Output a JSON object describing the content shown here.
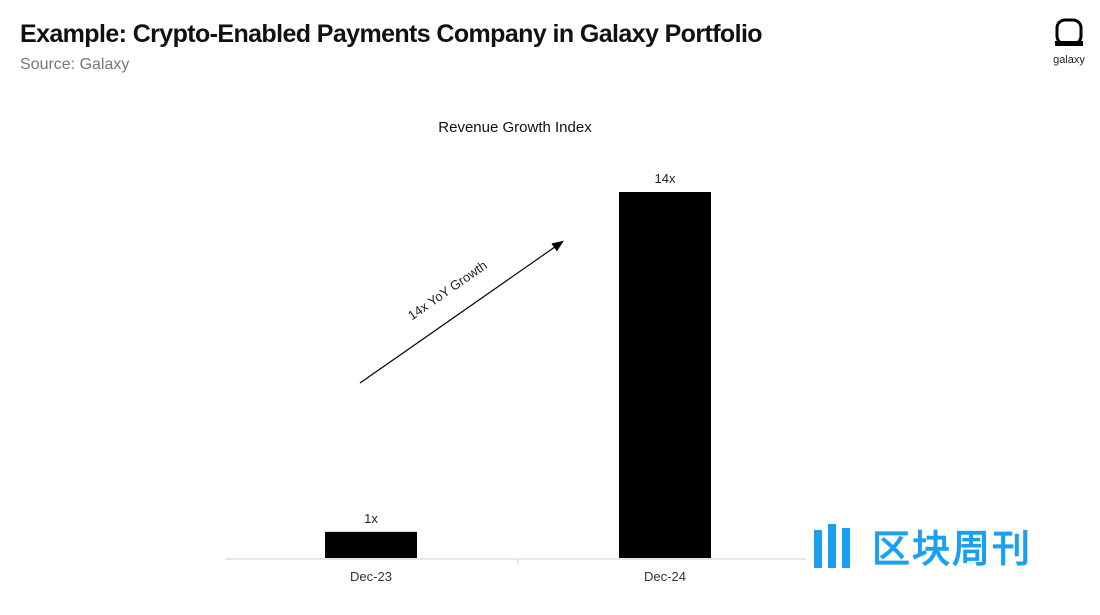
{
  "header": {
    "title": "Example: Crypto-Enabled Payments Company in Galaxy Portfolio",
    "subtitle": "Source: Galaxy"
  },
  "logo": {
    "text": "galaxy",
    "icon": "galaxy-logo-icon"
  },
  "watermark": {
    "text": "区块周刊",
    "icon": "blockchain-weekly-logo-icon",
    "color": "#1aa0f0"
  },
  "chart_data": {
    "type": "bar",
    "title": "Revenue Growth Index",
    "categories": [
      "Dec-23",
      "Dec-24"
    ],
    "values": [
      1,
      14
    ],
    "data_labels": [
      "1x",
      "14x"
    ],
    "ylim": [
      0,
      14
    ],
    "grid": false,
    "bar_color": "#000000",
    "annotation": {
      "text": "14x YoY Growth",
      "type": "arrow"
    }
  }
}
